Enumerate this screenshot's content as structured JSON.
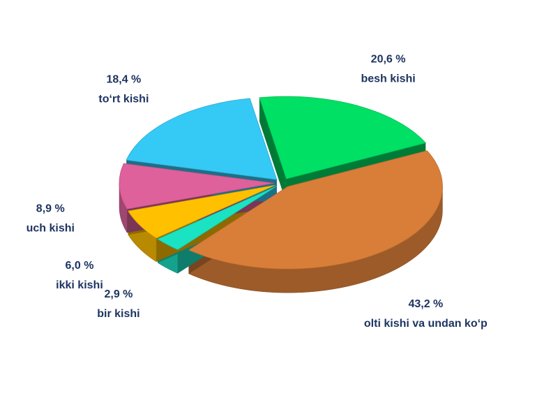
{
  "chart_data": {
    "type": "pie",
    "categories": [
      "besh kishi",
      "olti kishi va undan ko‘p",
      "bir kishi",
      "ikki kishi",
      "uch kishi",
      "to‘rt kishi"
    ],
    "values": [
      20.6,
      43.2,
      2.9,
      6.0,
      8.9,
      18.4
    ],
    "value_labels": [
      "20,6 %",
      "43,2 %",
      "2,9 %",
      "6,0 %",
      "8,9 %",
      "18,4 %"
    ],
    "colors": [
      "#00e064",
      "#d87e38",
      "#1ae3c3",
      "#ffc000",
      "#df619b",
      "#35c9f6"
    ]
  }
}
